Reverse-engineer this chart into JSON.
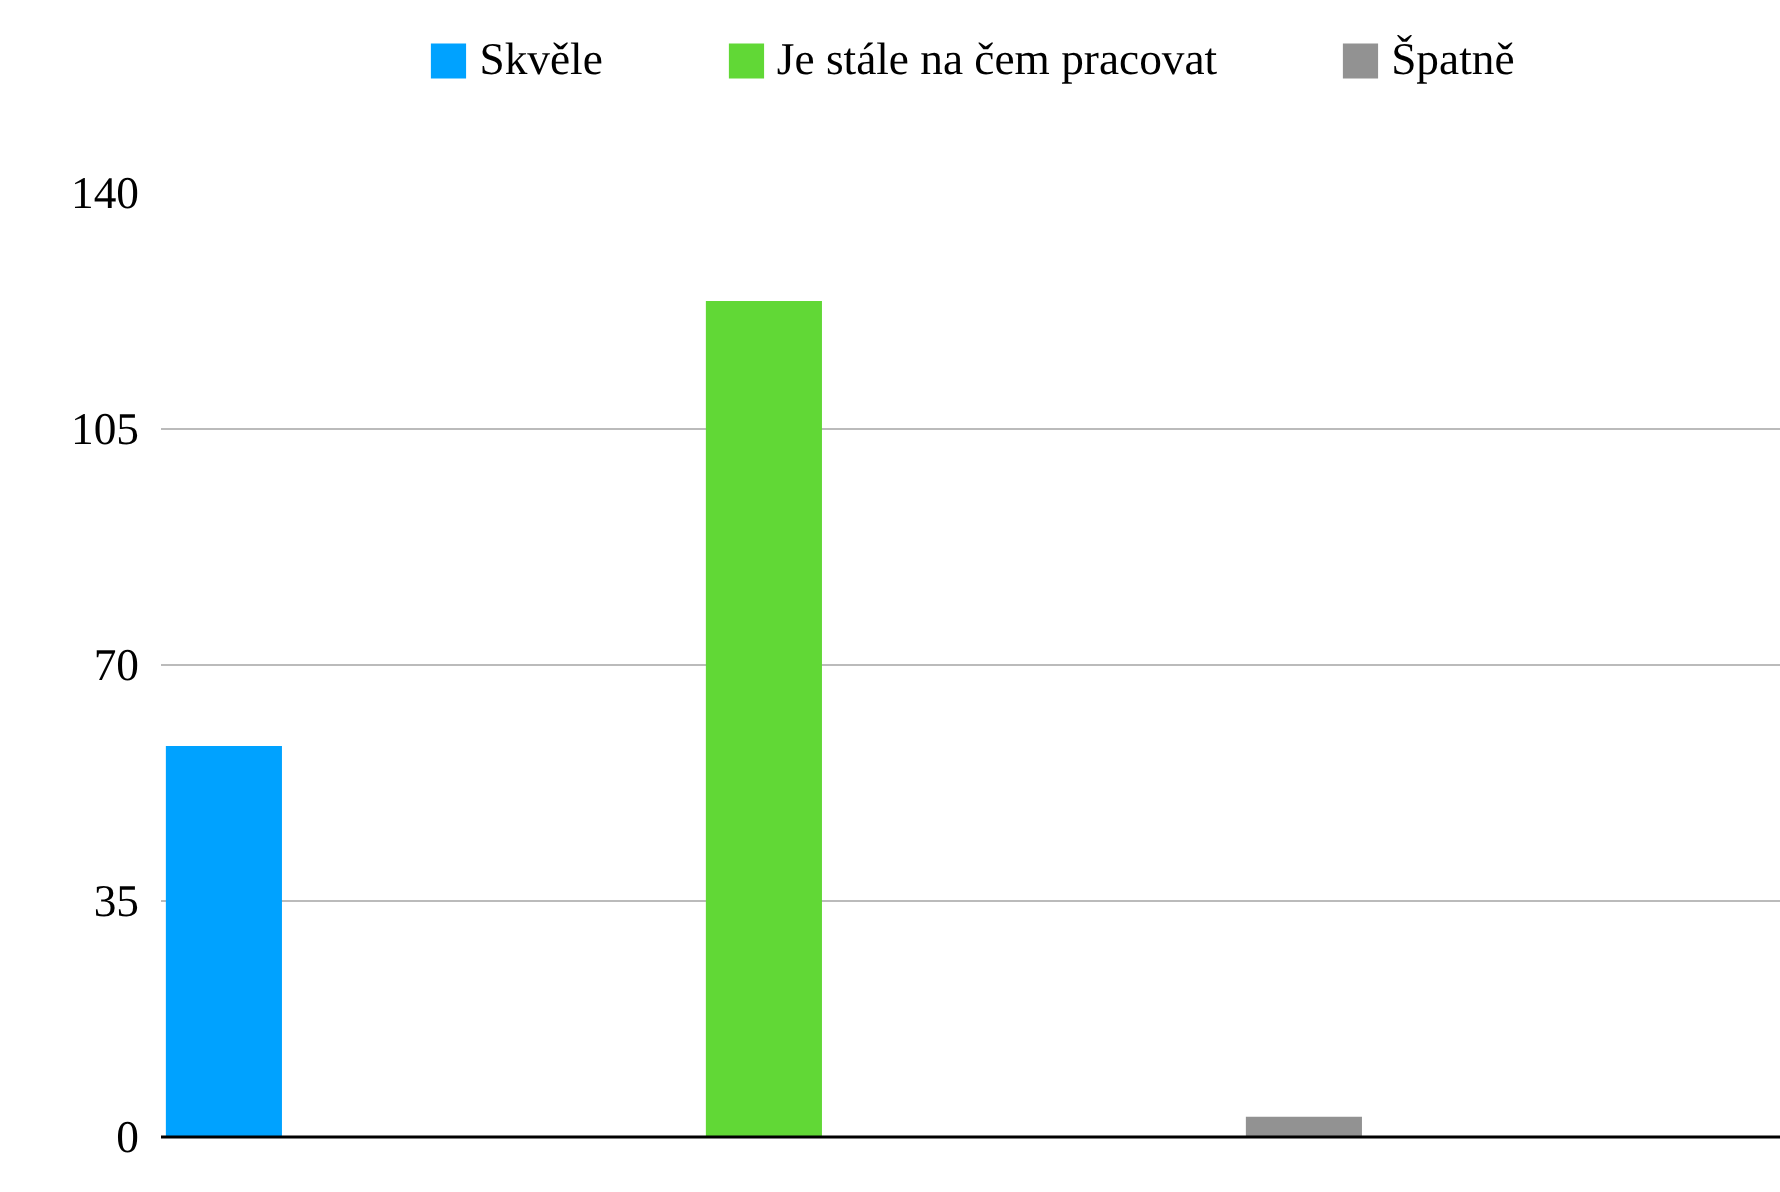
{
  "chart_data": {
    "type": "bar",
    "categories": [
      null
    ],
    "series": [
      {
        "name": "Skvěle",
        "color": "#00a2ff",
        "values": [
          58
        ]
      },
      {
        "name": "Je stále na čem pracovat",
        "color": "#61d836",
        "values": [
          124
        ]
      },
      {
        "name": "Špatně",
        "color": "#929292",
        "values": [
          3
        ]
      }
    ],
    "ylim": [
      0,
      140
    ],
    "yticks": [
      0,
      35,
      70,
      105,
      140
    ],
    "grid": "y",
    "legend": "top"
  }
}
